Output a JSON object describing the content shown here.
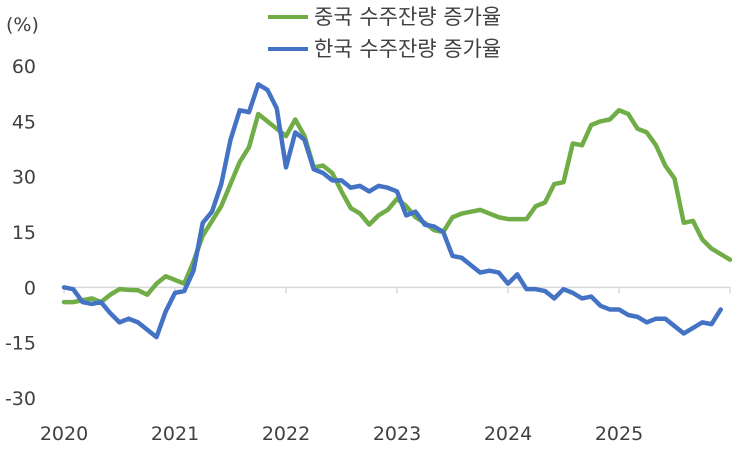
{
  "chart_data": {
    "type": "line",
    "unit_label": "(%)",
    "ylim": [
      -30,
      60
    ],
    "y_ticks": [
      -30,
      -15,
      0,
      15,
      30,
      45,
      60
    ],
    "x_ticks": [
      "2020",
      "2021",
      "2022",
      "2023",
      "2024",
      "2025"
    ],
    "x_start": "2020-01",
    "legend_position": "top-center",
    "grid": false,
    "series": [
      {
        "name": "중국 수주잔량 증가율",
        "color": "#70AD47",
        "values": [
          -4,
          -4,
          -3.5,
          -3,
          -4,
          -2,
          -0.5,
          -0.7,
          -0.8,
          -2,
          1,
          3,
          2,
          1,
          7,
          14,
          18,
          22,
          28,
          34,
          38,
          47,
          45,
          43,
          41,
          45.5,
          41,
          32.5,
          33,
          31,
          26,
          21.5,
          20,
          17,
          19.5,
          21,
          24,
          22,
          19,
          17.5,
          15.5,
          15,
          19,
          20,
          20.5,
          21,
          20,
          19,
          18.5,
          18.5,
          18.5,
          22,
          23,
          28,
          28.5,
          39,
          38.5,
          44,
          45,
          45.5,
          48,
          47,
          43,
          42,
          38.5,
          33,
          29.5,
          17.5,
          18,
          13,
          10.5,
          9,
          7.5
        ]
      },
      {
        "name": "한국 수주잔량 증가율",
        "color": "#4472C4",
        "values": [
          0,
          -0.5,
          -4,
          -4.5,
          -4,
          -7,
          -9.5,
          -8.5,
          -9.5,
          -11.5,
          -13.5,
          -6.5,
          -1.5,
          -1,
          4.5,
          17.5,
          20.5,
          28,
          40,
          48,
          47.5,
          55,
          53.5,
          48.5,
          32.5,
          42,
          40,
          32,
          31,
          29,
          29,
          27,
          27.5,
          26,
          27.5,
          27,
          26,
          19.5,
          20.5,
          17,
          16.5,
          15,
          8.5,
          8,
          6,
          4,
          4.5,
          4,
          1,
          3.5,
          -0.5,
          -0.5,
          -1,
          -3,
          -0.5,
          -1.5,
          -3,
          -2.5,
          -5,
          -6,
          -6,
          -7.5,
          -8,
          -9.5,
          -8.5,
          -8.5,
          -10.5,
          -12.5,
          -11,
          -9.5,
          -10,
          -6
        ]
      }
    ]
  }
}
